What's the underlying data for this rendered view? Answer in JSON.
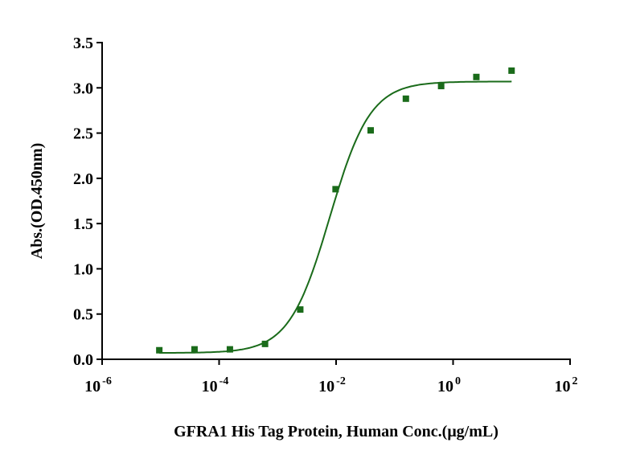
{
  "chart_data": {
    "type": "scatter",
    "title": "",
    "xlabel": "GFRA1 His Tag Protein, Human Conc.(μg/mL)",
    "ylabel": "Abs.(OD.450nm)",
    "xscale": "log",
    "xlim": [
      1e-06,
      100
    ],
    "ylim": [
      0,
      3.5
    ],
    "grid": false,
    "color": "#1a6b1a",
    "x_ticks": [
      {
        "base": "10",
        "exp": "-6"
      },
      {
        "base": "10",
        "exp": "-4"
      },
      {
        "base": "10",
        "exp": "-2"
      },
      {
        "base": "10",
        "exp": "0"
      },
      {
        "base": "10",
        "exp": "2"
      }
    ],
    "y_ticks": [
      "0.0",
      "0.5",
      "1.0",
      "1.5",
      "2.0",
      "2.5",
      "3.0",
      "3.5"
    ],
    "series": [
      {
        "name": "GFRA1 His Tag Protein, Human",
        "x": [
          9.5e-06,
          3.8e-05,
          0.000153,
          0.00061,
          0.00244,
          0.0098,
          0.039,
          0.156,
          0.625,
          2.5,
          10
        ],
        "y": [
          0.1,
          0.11,
          0.11,
          0.17,
          0.55,
          1.88,
          2.53,
          2.88,
          3.02,
          3.12,
          3.19
        ]
      }
    ],
    "fit": {
      "model": "4PL",
      "bottom": 0.07,
      "top": 3.07,
      "ec50": 0.0078,
      "hill": 1.25
    }
  }
}
